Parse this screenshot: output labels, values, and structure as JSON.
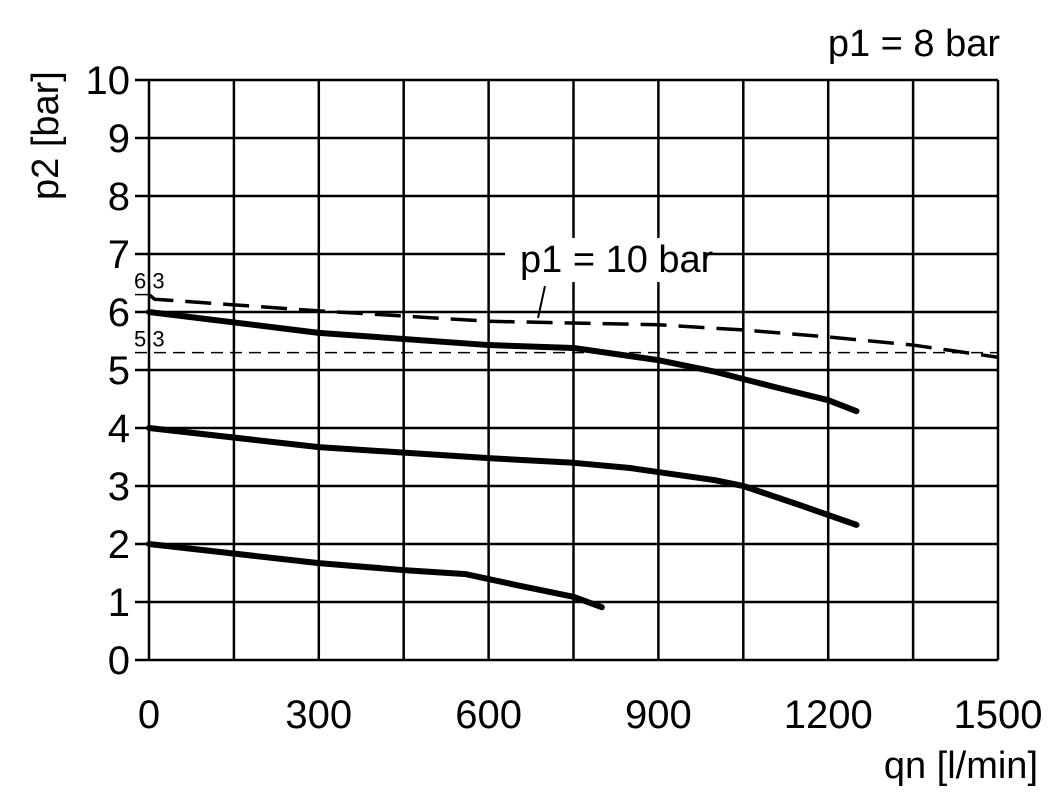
{
  "chart_data": {
    "type": "line",
    "title": "p1 = 8 bar",
    "xlabel": "qn [l/min]",
    "ylabel": "p2 [bar]",
    "xlim": [
      0,
      1500
    ],
    "ylim": [
      0,
      10
    ],
    "x_ticks": [
      0,
      300,
      600,
      900,
      1200,
      1500
    ],
    "y_ticks": [
      0,
      1,
      2,
      3,
      4,
      5,
      6,
      7,
      8,
      9,
      10
    ],
    "grid": true,
    "grid_x_step": 150,
    "grid_y_step": 1,
    "series": [
      {
        "style": "solid",
        "x": [
          0,
          300,
          600,
          750,
          900,
          1000,
          1100,
          1200,
          1250
        ],
        "y": [
          6.0,
          5.64,
          5.43,
          5.38,
          5.17,
          4.97,
          4.72,
          4.48,
          4.29
        ]
      },
      {
        "style": "solid",
        "x": [
          0,
          300,
          600,
          750,
          850,
          1000,
          1050,
          1150,
          1250
        ],
        "y": [
          4.0,
          3.67,
          3.48,
          3.4,
          3.31,
          3.1,
          3.0,
          2.67,
          2.33
        ]
      },
      {
        "style": "solid",
        "x": [
          0,
          300,
          450,
          560,
          650,
          750,
          800
        ],
        "y": [
          2.0,
          1.67,
          1.55,
          1.48,
          1.29,
          1.09,
          0.91
        ]
      },
      {
        "name": "p1 = 10 bar",
        "style": "dashed",
        "x": [
          0,
          10,
          300,
          600,
          900,
          1050,
          1200,
          1350,
          1500
        ],
        "y": [
          6.3,
          6.22,
          6.02,
          5.84,
          5.78,
          5.69,
          5.57,
          5.43,
          5.22
        ]
      }
    ],
    "reference_lines": [
      {
        "label": "6,3",
        "y": 6.3
      },
      {
        "label": "5,3",
        "y": 5.3,
        "style": "dashed"
      }
    ],
    "colors": {
      "line": "#000000",
      "background": "#ffffff"
    }
  }
}
